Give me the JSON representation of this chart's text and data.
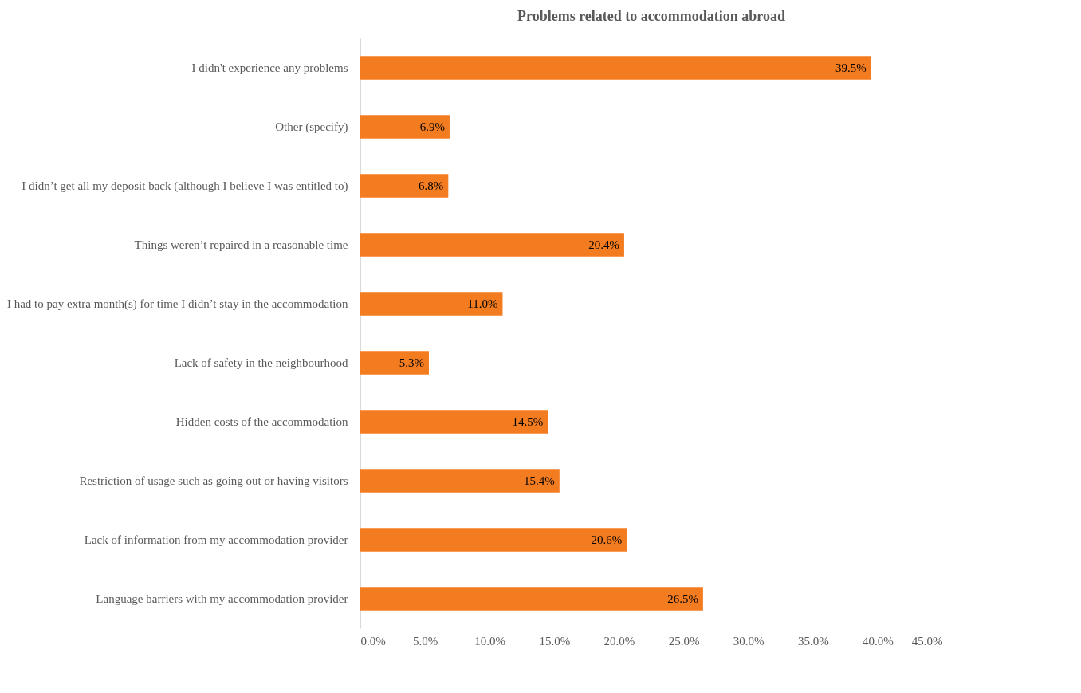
{
  "chart_data": {
    "type": "bar",
    "orientation": "horizontal",
    "title": "Problems related to accommodation abroad",
    "categories": [
      "I didn't experience any problems",
      "Other (specify)",
      "I didn’t get all my deposit back (although I believe I was entitled to)",
      "Things weren’t repaired in a reasonable time",
      "I had to pay extra month(s) for time I didn’t stay in the accommodation",
      "Lack of safety in the neighbourhood",
      "Hidden costs of the accommodation",
      "Restriction of usage such as going out or having visitors",
      "Lack of information from my accommodation provider",
      "Language barriers with my accommodation provider"
    ],
    "values": [
      39.5,
      6.9,
      6.8,
      20.4,
      11.0,
      5.3,
      14.5,
      15.4,
      20.6,
      26.5
    ],
    "value_labels": [
      "39.5%",
      "6.9%",
      "6.8%",
      "20.4%",
      "11.0%",
      "5.3%",
      "14.5%",
      "15.4%",
      "20.6%",
      "26.5%"
    ],
    "color": "#f47c20",
    "xlim": [
      0,
      45
    ],
    "xticks": [
      {
        "value": 0,
        "label": "0.0%"
      },
      {
        "value": 5,
        "label": "5.0%"
      },
      {
        "value": 10,
        "label": "10.0%"
      },
      {
        "value": 15,
        "label": "15.0%"
      },
      {
        "value": 20,
        "label": "20.0%"
      },
      {
        "value": 25,
        "label": "25.0%"
      },
      {
        "value": 30,
        "label": "30.0%"
      },
      {
        "value": 35,
        "label": "35.0%"
      },
      {
        "value": 40,
        "label": "40.0%"
      },
      {
        "value": 45,
        "label": "45.0%"
      }
    ],
    "grid": false
  }
}
